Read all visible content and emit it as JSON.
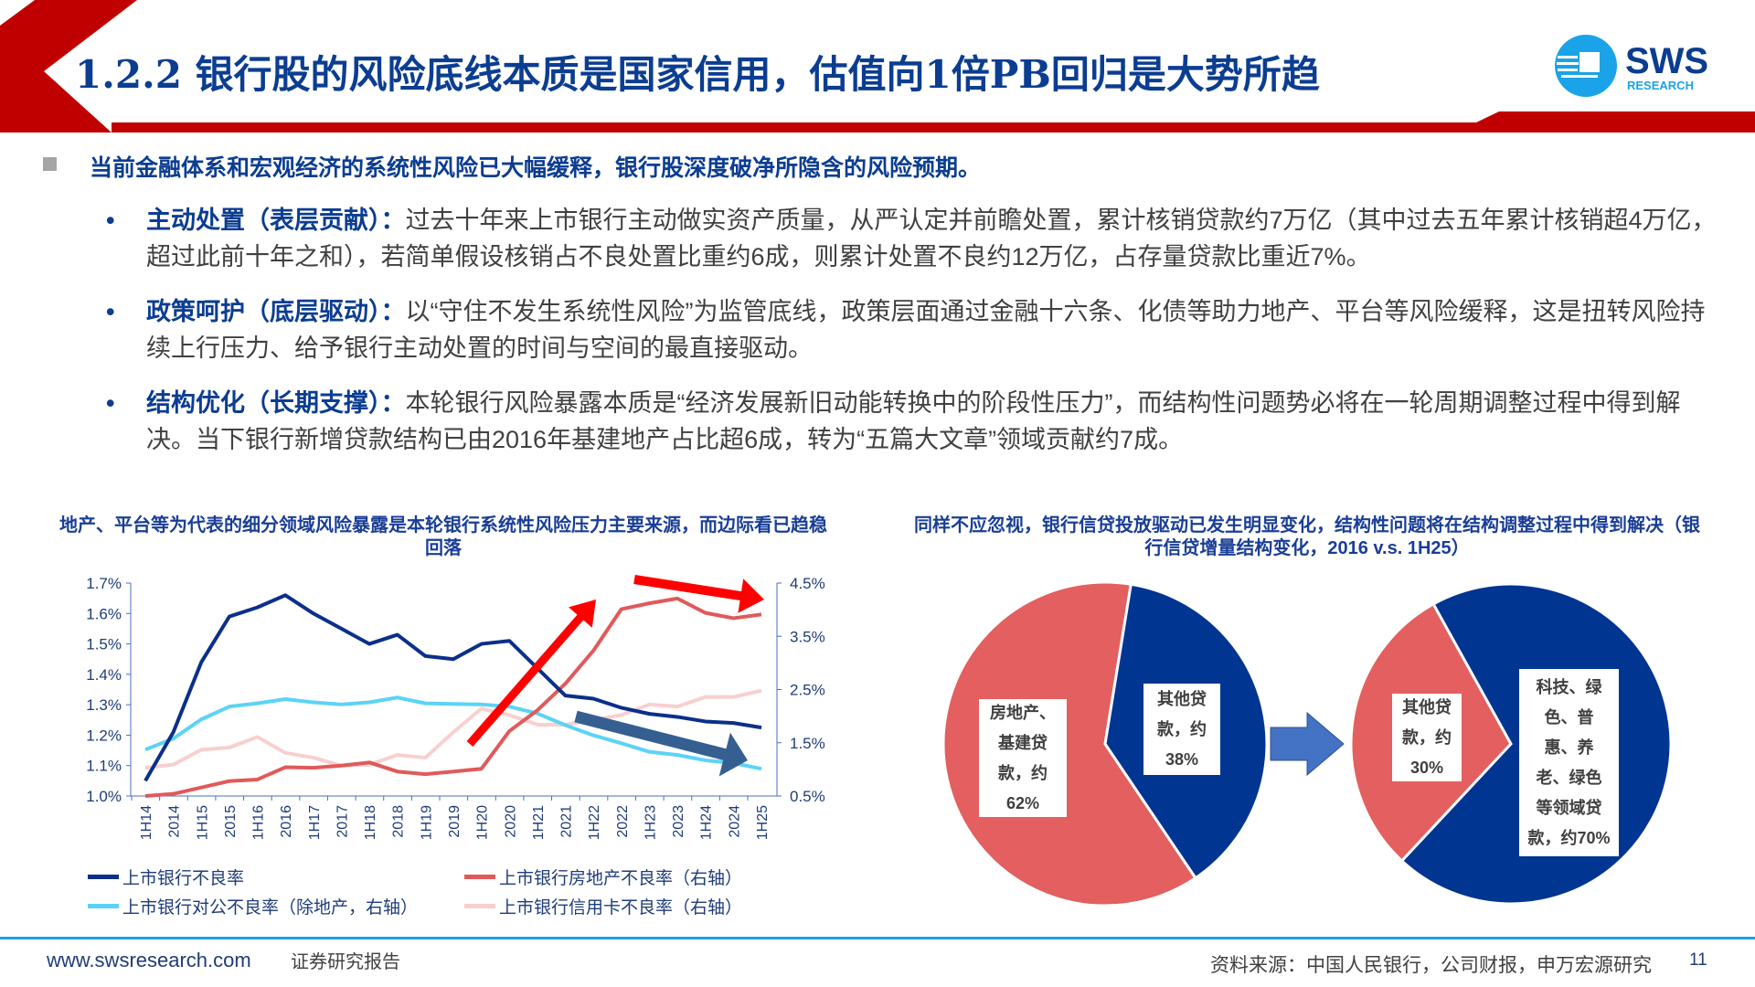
{
  "header": {
    "title": "1.2.2 银行股的风险底线本质是国家信用，估值向1倍PB回归是大势所趋",
    "logo_text": "SWS",
    "logo_sub": "RESEARCH"
  },
  "main": {
    "heading": "当前金融体系和宏观经济的系统性风险已大幅缓释，银行股深度破净所隐含的风险预期。",
    "bullets": [
      {
        "title": "主动处置（表层贡献）：",
        "text": "过去十年来上市银行主动做实资产质量，从严认定并前瞻处置，累计核销贷款约7万亿（其中过去五年累计核销超4万亿，超过此前十年之和），若简单假设核销占不良处置比重约6成，则累计处置不良约12万亿，占存量贷款比重近7%。"
      },
      {
        "title": "政策呵护（底层驱动）：",
        "text": "以“守住不发生系统性风险”为监管底线，政策层面通过金融十六条、化债等助力地产、平台等风险缓释，这是扭转风险持续上行压力、给予银行主动处置的时间与空间的最直接驱动。"
      },
      {
        "title": "结构优化（长期支撑）：",
        "text": "本轮银行风险暴露本质是“经济发展新旧动能转换中的阶段性压力”，而结构性问题势必将在一轮周期调整过程中得到解决。当下银行新增贷款结构已由2016年基建地产占比超6成，转为“五篇大文章”领域贡献约7成。"
      }
    ]
  },
  "chart_data": [
    {
      "type": "line",
      "title": "地产、平台等为代表的细分领域风险暴露是本轮银行系统性风险压力主要来源，而边际看已趋稳回落",
      "categories": [
        "1H14",
        "2014",
        "1H15",
        "2015",
        "1H16",
        "2016",
        "1H17",
        "2017",
        "1H18",
        "2018",
        "1H19",
        "2019",
        "1H20",
        "2020",
        "1H21",
        "2021",
        "1H22",
        "2022",
        "1H23",
        "2023",
        "1H24",
        "2024",
        "1H25"
      ],
      "ylim": [
        1.0,
        1.7
      ],
      "yticks": [
        "1.7%",
        "1.6%",
        "1.5%",
        "1.4%",
        "1.3%",
        "1.2%",
        "1.1%",
        "1.0%"
      ],
      "y2lim": [
        0.5,
        4.5
      ],
      "y2ticks": [
        "4.5%",
        "3.5%",
        "2.5%",
        "1.5%",
        "0.5%"
      ],
      "series": [
        {
          "name": "上市银行不良率",
          "axis": "left",
          "color": "#0b2f8a",
          "values": [
            1.05,
            1.21,
            1.44,
            1.59,
            1.62,
            1.66,
            1.6,
            1.55,
            1.5,
            1.53,
            1.46,
            1.45,
            1.5,
            1.51,
            1.42,
            1.33,
            1.32,
            1.29,
            1.27,
            1.26,
            1.245,
            1.24,
            1.225
          ]
        },
        {
          "name": "上市银行房地产不良率（右轴）",
          "axis": "right",
          "color": "#e05a5a",
          "values": [
            0.46,
            0.54,
            0.66,
            0.78,
            0.81,
            1.04,
            1.03,
            1.07,
            1.13,
            0.96,
            0.91,
            0.96,
            1.01,
            1.72,
            2.11,
            2.61,
            3.23,
            4.01,
            4.12,
            4.21,
            3.94,
            3.84,
            3.91
          ]
        },
        {
          "name": "上市银行对公不良率（除地产，右轴）",
          "axis": "right",
          "color": "#5bd3f7",
          "values": [
            1.37,
            1.58,
            1.94,
            2.18,
            2.24,
            2.32,
            2.26,
            2.22,
            2.26,
            2.35,
            2.24,
            2.23,
            2.22,
            2.18,
            2.05,
            1.83,
            1.64,
            1.49,
            1.33,
            1.27,
            1.17,
            1.12,
            1.01
          ]
        },
        {
          "name": "上市银行信用卡不良率（右轴）",
          "axis": "right",
          "color": "#f8cfcf",
          "values": [
            1.03,
            1.09,
            1.37,
            1.41,
            1.61,
            1.31,
            1.22,
            1.07,
            1.09,
            1.27,
            1.22,
            1.7,
            2.14,
            2.02,
            1.84,
            1.84,
            1.93,
            2.02,
            2.22,
            2.18,
            2.36,
            2.36,
            2.48
          ]
        }
      ],
      "legend": "bottom"
    },
    {
      "type": "pie",
      "title": "同样不应忽视，银行信贷投放驱动已发生明显变化，结构性问题将在结构调整过程中得到解决（银行信贷增量结构变化，2016 v.s. 1H25）",
      "pies": [
        {
          "period": "2016",
          "slices": [
            {
              "label": "房地产、基建贷款，约62%",
              "value": 62,
              "color": "#e45f5f"
            },
            {
              "label": "其他贷款，约38%",
              "value": 38,
              "color": "#003591"
            }
          ]
        },
        {
          "period": "1H25",
          "slices": [
            {
              "label": "其他贷款，约30%",
              "value": 30,
              "color": "#e45f5f"
            },
            {
              "label": "科技、绿色、普惠、养老、绿色等领域贷款，约70%",
              "value": 70,
              "color": "#003591"
            }
          ]
        }
      ],
      "labels": {
        "l1": [
          "房地产、",
          "基建贷",
          "款，约",
          "62%"
        ],
        "l2": [
          "其他贷",
          "款，约",
          "38%"
        ],
        "r1": [
          "其他贷",
          "款，约",
          "30%"
        ],
        "r2": [
          "科技、绿",
          "色、普",
          "惠、养",
          "老、绿色",
          "等领域贷",
          "款，约70%"
        ]
      }
    }
  ],
  "footer": {
    "website": "www.swsresearch.com",
    "report_type": "证券研究报告",
    "source": "资料来源：中国人民银行，公司财报，申万宏源研究",
    "page": "11"
  }
}
